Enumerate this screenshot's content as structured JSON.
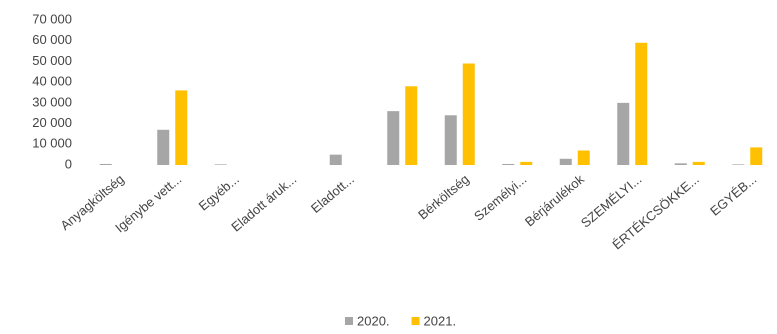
{
  "chart_data": {
    "type": "bar",
    "categories": [
      "Anyagköltség",
      "Igénybe vett...",
      "Egyéb...",
      "Eladott áruk...",
      "Eladott...",
      null,
      "Bérköltség",
      "Személyi...",
      "Bérjárulékok",
      "SZEMÉLYI...",
      "ÉRTÉKCSÖKKE...",
      "EGYÉB..."
    ],
    "series": [
      {
        "name": "2020.",
        "color": "#a6a6a6",
        "values": [
          500,
          17000,
          300,
          0,
          5000,
          26000,
          24000,
          500,
          3000,
          30000,
          800,
          300
        ]
      },
      {
        "name": "2021.",
        "color": "#ffc000",
        "values": [
          0,
          36000,
          0,
          0,
          0,
          38000,
          49000,
          1500,
          7000,
          59000,
          1500,
          8500
        ]
      }
    ],
    "ylim": [
      0,
      70000
    ],
    "yticks": [
      0,
      {
        "value": 10000,
        "label": "10 000"
      },
      {
        "value": 20000,
        "label": "20 000"
      },
      {
        "value": 30000,
        "label": "30 000"
      },
      {
        "value": 40000,
        "label": "40 000"
      },
      {
        "value": 50000,
        "label": "50 000"
      },
      {
        "value": 60000,
        "label": "60 000"
      },
      {
        "value": 70000,
        "label": "70 000"
      }
    ],
    "grid": false,
    "legend": "bottom"
  }
}
